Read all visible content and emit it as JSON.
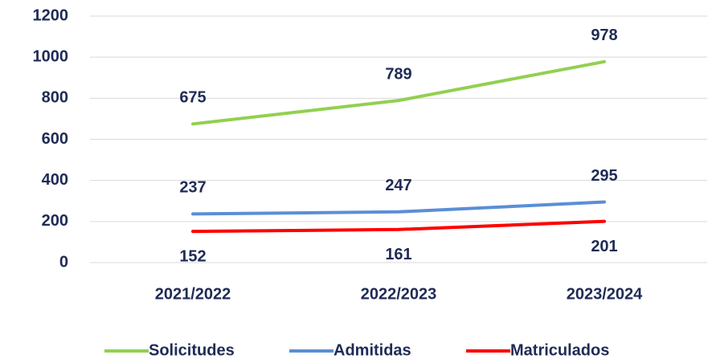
{
  "chart_data": {
    "type": "line",
    "categories": [
      "2021/2022",
      "2022/2023",
      "2023/2024"
    ],
    "series": [
      {
        "name": "Solicitudes",
        "color": "#92d050",
        "values": [
          675,
          789,
          978
        ],
        "label_position": "above"
      },
      {
        "name": "Admitidas",
        "color": "#5b8ed6",
        "values": [
          237,
          247,
          295
        ],
        "label_position": "above"
      },
      {
        "name": "Matriculados",
        "color": "#ff0000",
        "values": [
          152,
          161,
          201
        ],
        "label_position": "below"
      }
    ],
    "ylim": [
      0,
      1200
    ],
    "yticks": [
      0,
      200,
      400,
      600,
      800,
      1000,
      1200
    ],
    "grid": true,
    "legend": "bottom"
  }
}
